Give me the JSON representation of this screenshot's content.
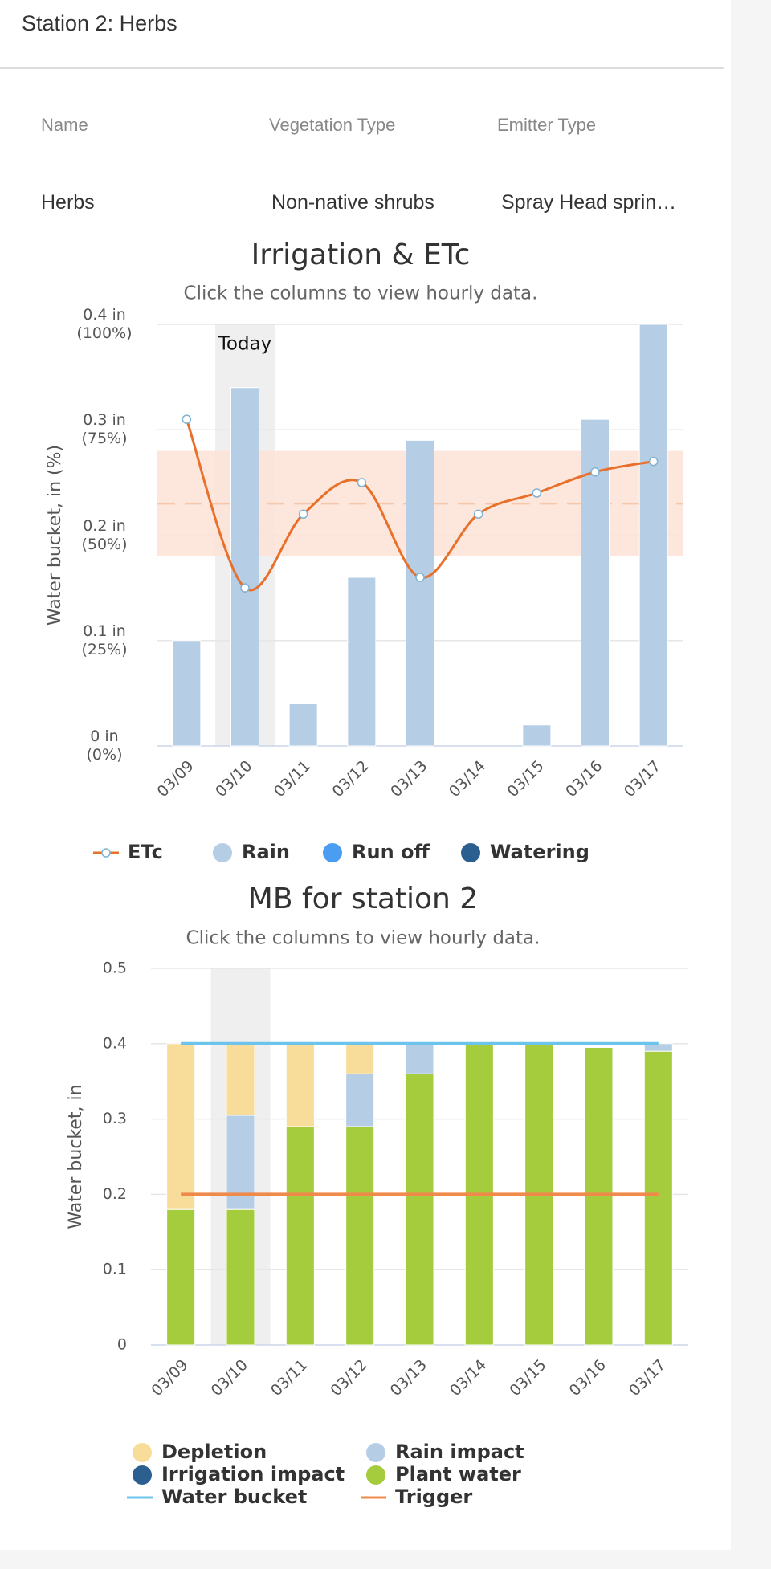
{
  "header": {
    "title": "Station 2: Herbs"
  },
  "table": {
    "columns": [
      "Name",
      "Vegetation Type",
      "Emitter Type"
    ],
    "rows": [
      [
        "Herbs",
        "Non-native shrubs",
        "Spray Head sprin…"
      ]
    ]
  },
  "chart_data": [
    {
      "type": "combo",
      "title": "Irrigation & ETc",
      "subtitle": "Click the columns to view hourly data.",
      "ylabel": "Water bucket, in (%)",
      "categories": [
        "03/09",
        "03/10",
        "03/11",
        "03/12",
        "03/13",
        "03/14",
        "03/15",
        "03/16",
        "03/17"
      ],
      "highlight": {
        "index": 1,
        "label": "Today"
      },
      "band": {
        "range": [
          0.18,
          0.28
        ],
        "line": 0.23,
        "color": "#fde3d6"
      },
      "ylim": [
        0,
        0.4
      ],
      "yticks": [
        {
          "value": 0,
          "label": "0 in (0%)"
        },
        {
          "value": 0.1,
          "label": "0.1 in (25%)"
        },
        {
          "value": 0.2,
          "label": "0.2 in (50%)"
        },
        {
          "value": 0.3,
          "label": "0.3 in (75%)"
        },
        {
          "value": 0.4,
          "label": "0.4 in (100%)"
        }
      ],
      "grid": true,
      "series": [
        {
          "name": "ETc",
          "type": "line",
          "color": "#e8702a",
          "values": [
            0.31,
            0.15,
            0.22,
            0.25,
            0.16,
            0.22,
            0.24,
            0.26,
            0.27
          ]
        },
        {
          "name": "Rain",
          "type": "bar",
          "color": "#b6cde6",
          "values": [
            0.1,
            0.34,
            0.04,
            0.16,
            0.29,
            0,
            0.02,
            0.31,
            0.4
          ]
        },
        {
          "name": "Run off",
          "type": "bar",
          "color": "#4a9df0",
          "values": [
            null,
            null,
            null,
            null,
            null,
            null,
            null,
            null,
            null
          ]
        },
        {
          "name": "Watering",
          "type": "bar",
          "color": "#2a5f8f",
          "values": [
            null,
            null,
            null,
            null,
            null,
            null,
            null,
            null,
            null
          ]
        }
      ]
    },
    {
      "type": "stacked_bar",
      "title": "MB for station 2",
      "subtitle": "Click the columns to view hourly data.",
      "ylabel": "Water bucket, in",
      "categories": [
        "03/09",
        "03/10",
        "03/11",
        "03/12",
        "03/13",
        "03/14",
        "03/15",
        "03/16",
        "03/17"
      ],
      "highlight": {
        "index": 1
      },
      "ylim": [
        0,
        0.5
      ],
      "yticks": [
        0,
        0.1,
        0.2,
        0.3,
        0.4,
        0.5
      ],
      "grid": true,
      "series": [
        {
          "name": "Depletion",
          "type": "bar",
          "color": "#f8dc9a",
          "values": [
            0.22,
            0.095,
            0.11,
            0.04,
            0,
            0,
            0,
            0,
            0
          ]
        },
        {
          "name": "Rain impact",
          "type": "bar",
          "color": "#b6cde6",
          "values": [
            0,
            0.125,
            0,
            0.07,
            0.04,
            0,
            0,
            0,
            0.01
          ]
        },
        {
          "name": "Irrigation impact",
          "type": "bar",
          "color": "#2a5f8f",
          "values": [
            0,
            0,
            0,
            0,
            0,
            0,
            0,
            0,
            0
          ]
        },
        {
          "name": "Plant water",
          "type": "bar",
          "color": "#a4cc3c",
          "values": [
            0.18,
            0.18,
            0.29,
            0.29,
            0.36,
            0.4,
            0.4,
            0.395,
            0.39
          ]
        },
        {
          "name": "Water bucket",
          "type": "line",
          "color": "#6cc4ec",
          "values": [
            0.4,
            0.4,
            0.4,
            0.4,
            0.4,
            0.4,
            0.4,
            0.4,
            0.4
          ]
        },
        {
          "name": "Trigger",
          "type": "line",
          "color": "#f08a4b",
          "values": [
            0.2,
            0.2,
            0.2,
            0.2,
            0.2,
            0.2,
            0.2,
            0.2,
            0.2
          ]
        }
      ]
    }
  ]
}
